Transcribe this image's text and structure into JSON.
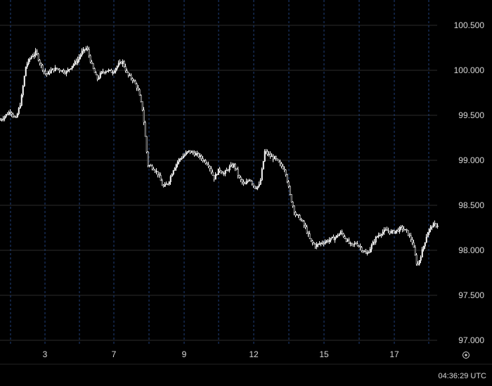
{
  "colors": {
    "background": "#000000",
    "candles": "#ffffff",
    "grid_horizontal": "#2b2b2b",
    "grid_vertical": "#1f3f7a",
    "text": "#d9d9d9"
  },
  "status": {
    "time": "04:36:29 UTC"
  },
  "scale_toggle_icon": "settings-circle-icon",
  "chart_data": {
    "type": "candlestick",
    "y_ticks": [
      "100.500",
      "100.000",
      "99.500",
      "99.000",
      "98.500",
      "98.000",
      "97.500",
      "97.000"
    ],
    "y_range": [
      97.0,
      100.5
    ],
    "x_tick_labels": [
      "3",
      "7",
      "9",
      "12",
      "15",
      "17"
    ],
    "grid": true,
    "price_path": [
      [
        -2,
        99.45
      ],
      [
        0,
        99.55
      ],
      [
        1,
        99.45
      ],
      [
        2,
        99.65
      ],
      [
        3,
        100.05
      ],
      [
        4,
        100.15
      ],
      [
        5,
        100.2
      ],
      [
        6,
        100.05
      ],
      [
        7,
        99.95
      ],
      [
        8,
        100.0
      ],
      [
        9,
        100.02
      ],
      [
        10,
        100.0
      ],
      [
        11,
        99.98
      ],
      [
        12,
        100.05
      ],
      [
        13,
        100.1
      ],
      [
        14,
        100.2
      ],
      [
        15,
        100.25
      ],
      [
        16,
        100.05
      ],
      [
        17,
        99.9
      ],
      [
        18,
        99.98
      ],
      [
        19,
        100.0
      ],
      [
        20,
        99.98
      ],
      [
        21,
        100.05
      ],
      [
        22,
        100.1
      ],
      [
        23,
        99.95
      ],
      [
        24,
        99.9
      ],
      [
        25,
        99.8
      ],
      [
        26,
        99.55
      ],
      [
        27,
        98.95
      ],
      [
        28,
        98.92
      ],
      [
        29,
        98.85
      ],
      [
        30,
        98.7
      ],
      [
        31,
        98.75
      ],
      [
        32,
        98.9
      ],
      [
        33,
        99.0
      ],
      [
        34,
        99.05
      ],
      [
        35,
        99.1
      ],
      [
        36,
        99.08
      ],
      [
        37,
        99.05
      ],
      [
        38,
        99.0
      ],
      [
        39,
        98.95
      ],
      [
        40,
        98.8
      ],
      [
        41,
        98.9
      ],
      [
        42,
        98.85
      ],
      [
        43,
        98.92
      ],
      [
        44,
        98.95
      ],
      [
        45,
        98.8
      ],
      [
        46,
        98.72
      ],
      [
        47,
        98.8
      ],
      [
        48,
        98.7
      ],
      [
        49,
        98.72
      ],
      [
        50,
        99.1
      ],
      [
        51,
        99.05
      ],
      [
        52,
        99.02
      ],
      [
        53,
        98.95
      ],
      [
        54,
        98.9
      ],
      [
        55,
        98.6
      ],
      [
        56,
        98.4
      ],
      [
        57,
        98.35
      ],
      [
        58,
        98.25
      ],
      [
        59,
        98.1
      ],
      [
        60,
        98.05
      ],
      [
        61,
        98.08
      ],
      [
        62,
        98.1
      ],
      [
        63,
        98.12
      ],
      [
        64,
        98.15
      ],
      [
        65,
        98.2
      ],
      [
        66,
        98.12
      ],
      [
        67,
        98.05
      ],
      [
        68,
        98.08
      ],
      [
        69,
        98.02
      ],
      [
        70,
        97.95
      ],
      [
        71,
        98.05
      ],
      [
        72,
        98.15
      ],
      [
        73,
        98.2
      ],
      [
        74,
        98.22
      ],
      [
        75,
        98.2
      ],
      [
        76,
        98.22
      ],
      [
        77,
        98.25
      ],
      [
        78,
        98.2
      ],
      [
        79,
        98.1
      ],
      [
        80,
        97.82
      ],
      [
        81,
        98.0
      ],
      [
        82,
        98.2
      ],
      [
        83,
        98.28
      ],
      [
        84,
        98.28
      ]
    ],
    "price_path_x_span": [
      -2,
      84
    ]
  }
}
